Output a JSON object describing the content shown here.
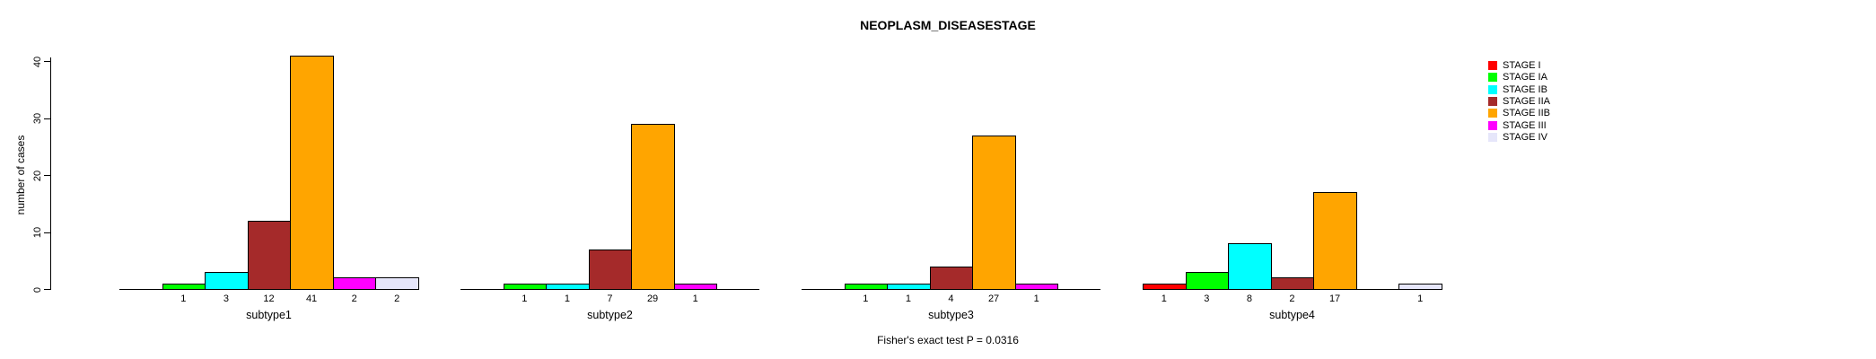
{
  "chart_data": {
    "type": "bar",
    "title": "NEOPLASM_DISEASESTAGE",
    "ylabel": "number of cases",
    "xlabel": "",
    "yticks": [
      0,
      10,
      20,
      30,
      40
    ],
    "ylim": [
      0,
      41
    ],
    "grid": false,
    "legend_position": "right",
    "categories": [
      "subtype1",
      "subtype2",
      "subtype3",
      "subtype4"
    ],
    "series": [
      {
        "name": "STAGE I",
        "color": "#FF0000",
        "values": [
          0,
          0,
          0,
          1
        ]
      },
      {
        "name": "STAGE IA",
        "color": "#00FF00",
        "values": [
          1,
          1,
          1,
          3
        ]
      },
      {
        "name": "STAGE IB",
        "color": "#00FFFF",
        "values": [
          3,
          1,
          1,
          8
        ]
      },
      {
        "name": "STAGE IIA",
        "color": "#A52A2A",
        "values": [
          12,
          7,
          4,
          2
        ]
      },
      {
        "name": "STAGE IIB",
        "color": "#FFA500",
        "values": [
          41,
          29,
          27,
          17
        ]
      },
      {
        "name": "STAGE III",
        "color": "#FF00FF",
        "values": [
          2,
          1,
          1,
          0
        ]
      },
      {
        "name": "STAGE IV",
        "color": "#E6E6FA",
        "values": [
          2,
          0,
          0,
          1
        ]
      }
    ],
    "bar_value_labels_shown_for_nonzero_bars": true,
    "annotation": "Fisher's exact test P = 0.0316"
  }
}
